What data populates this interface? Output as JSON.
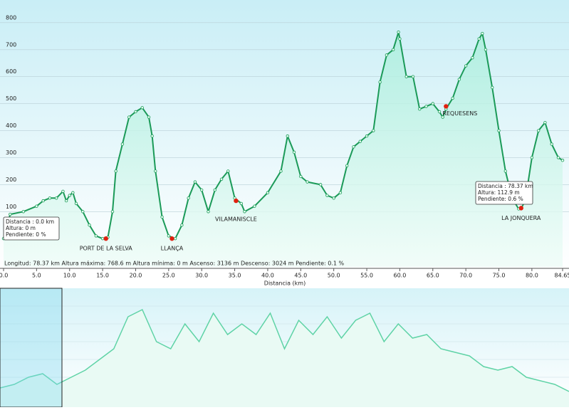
{
  "chart_data": {
    "type": "line",
    "xlabel": "Distancia   (km)",
    "stats": "Longitud: 78.37 km    Altura máxima: 768.6 m    Altura mínima: 0 m    Ascenso: 3136 m    Descenso: 3024 m    Pendiente: 0.1 %",
    "xlim": [
      0,
      84.65
    ],
    "ylim": [
      -105,
      884
    ],
    "xticks": [
      {
        "value": 0,
        "label": "0.0"
      },
      {
        "value": 5,
        "label": "5.0"
      },
      {
        "value": 10,
        "label": "10.0"
      },
      {
        "value": 15,
        "label": "15.0"
      },
      {
        "value": 20,
        "label": "20.0"
      },
      {
        "value": 25,
        "label": "25.0"
      },
      {
        "value": 30,
        "label": "30.0"
      },
      {
        "value": 35,
        "label": "35.0"
      },
      {
        "value": 40,
        "label": "40.0"
      },
      {
        "value": 45,
        "label": "45.0"
      },
      {
        "value": 50,
        "label": "50.0"
      },
      {
        "value": 55,
        "label": "55.0"
      },
      {
        "value": 60,
        "label": "60.0"
      },
      {
        "value": 65,
        "label": "65.0"
      },
      {
        "value": 70,
        "label": "70.0"
      },
      {
        "value": 75,
        "label": "75.0"
      },
      {
        "value": 80,
        "label": "80.0"
      },
      84.65
    ],
    "yticks": [
      100,
      200,
      300,
      400,
      500,
      600,
      700,
      800
    ],
    "grid": true,
    "series": [
      {
        "color": "#1b9a58",
        "x": [
          0,
          1,
          3,
          5,
          6,
          7,
          8,
          9,
          9.5,
          10,
          10.5,
          11,
          12,
          13,
          14,
          15,
          15.8,
          16.5,
          17,
          18,
          19,
          20,
          21,
          22,
          22.5,
          23,
          24,
          25,
          26,
          27,
          28,
          29,
          30,
          31,
          32,
          33,
          34,
          35,
          36,
          36.5,
          38,
          40,
          42,
          43,
          44,
          45,
          46,
          48,
          49,
          50,
          51,
          52,
          53,
          54,
          55,
          56,
          57,
          58,
          59,
          59.8,
          60,
          61,
          62,
          63,
          64,
          65,
          66,
          66.5,
          67,
          68,
          69,
          70,
          71,
          72,
          72.5,
          73,
          74,
          75,
          76,
          77,
          78,
          78.4,
          79,
          80,
          81,
          82,
          83,
          84,
          84.65
        ],
        "values": [
          0,
          90,
          100,
          120,
          140,
          150,
          150,
          175,
          140,
          160,
          170,
          130,
          100,
          50,
          10,
          0,
          5,
          100,
          250,
          350,
          450,
          470,
          485,
          450,
          380,
          250,
          80,
          10,
          0,
          50,
          150,
          210,
          180,
          100,
          180,
          220,
          250,
          150,
          130,
          100,
          120,
          170,
          250,
          380,
          320,
          230,
          210,
          200,
          160,
          150,
          170,
          270,
          340,
          360,
          380,
          400,
          580,
          680,
          700,
          765,
          740,
          600,
          600,
          480,
          490,
          500,
          470,
          450,
          480,
          520,
          590,
          640,
          670,
          740,
          760,
          700,
          560,
          400,
          250,
          150,
          110,
          113,
          140,
          300,
          400,
          430,
          350,
          300,
          290
        ]
      }
    ],
    "waypoints": [
      {
        "name": "PORT DE LA SELVA",
        "x": 15.5,
        "y": 0
      },
      {
        "name": "LLANÇA",
        "x": 25.5,
        "y": 0
      },
      {
        "name": "VILAMANISCLE",
        "x": 35.2,
        "y": 140
      },
      {
        "name": "REQUESENS",
        "x": 67,
        "y": 490
      },
      {
        "name": "LA JONQUERA",
        "x": 78.37,
        "y": 112.9
      }
    ],
    "tooltips": [
      {
        "lines": [
          "Distancia : 0.0 km",
          "Altura: 0 m",
          "Pendiente: 0 %"
        ]
      },
      {
        "lines": [
          "Distancia : 78.37 km",
          "Altura: 112.9 m",
          "Pendiente: 0.6 %"
        ]
      }
    ],
    "overview": {
      "color": "#5fd3a6",
      "ylim": [
        -12,
        155
      ],
      "values": [
        15,
        20,
        30,
        35,
        20,
        30,
        40,
        55,
        70,
        115,
        125,
        80,
        70,
        105,
        80,
        120,
        90,
        105,
        90,
        120,
        70,
        110,
        90,
        115,
        85,
        110,
        120,
        80,
        105,
        85,
        90,
        70,
        65,
        60,
        45,
        40,
        45,
        30,
        25,
        20,
        10
      ]
    }
  }
}
